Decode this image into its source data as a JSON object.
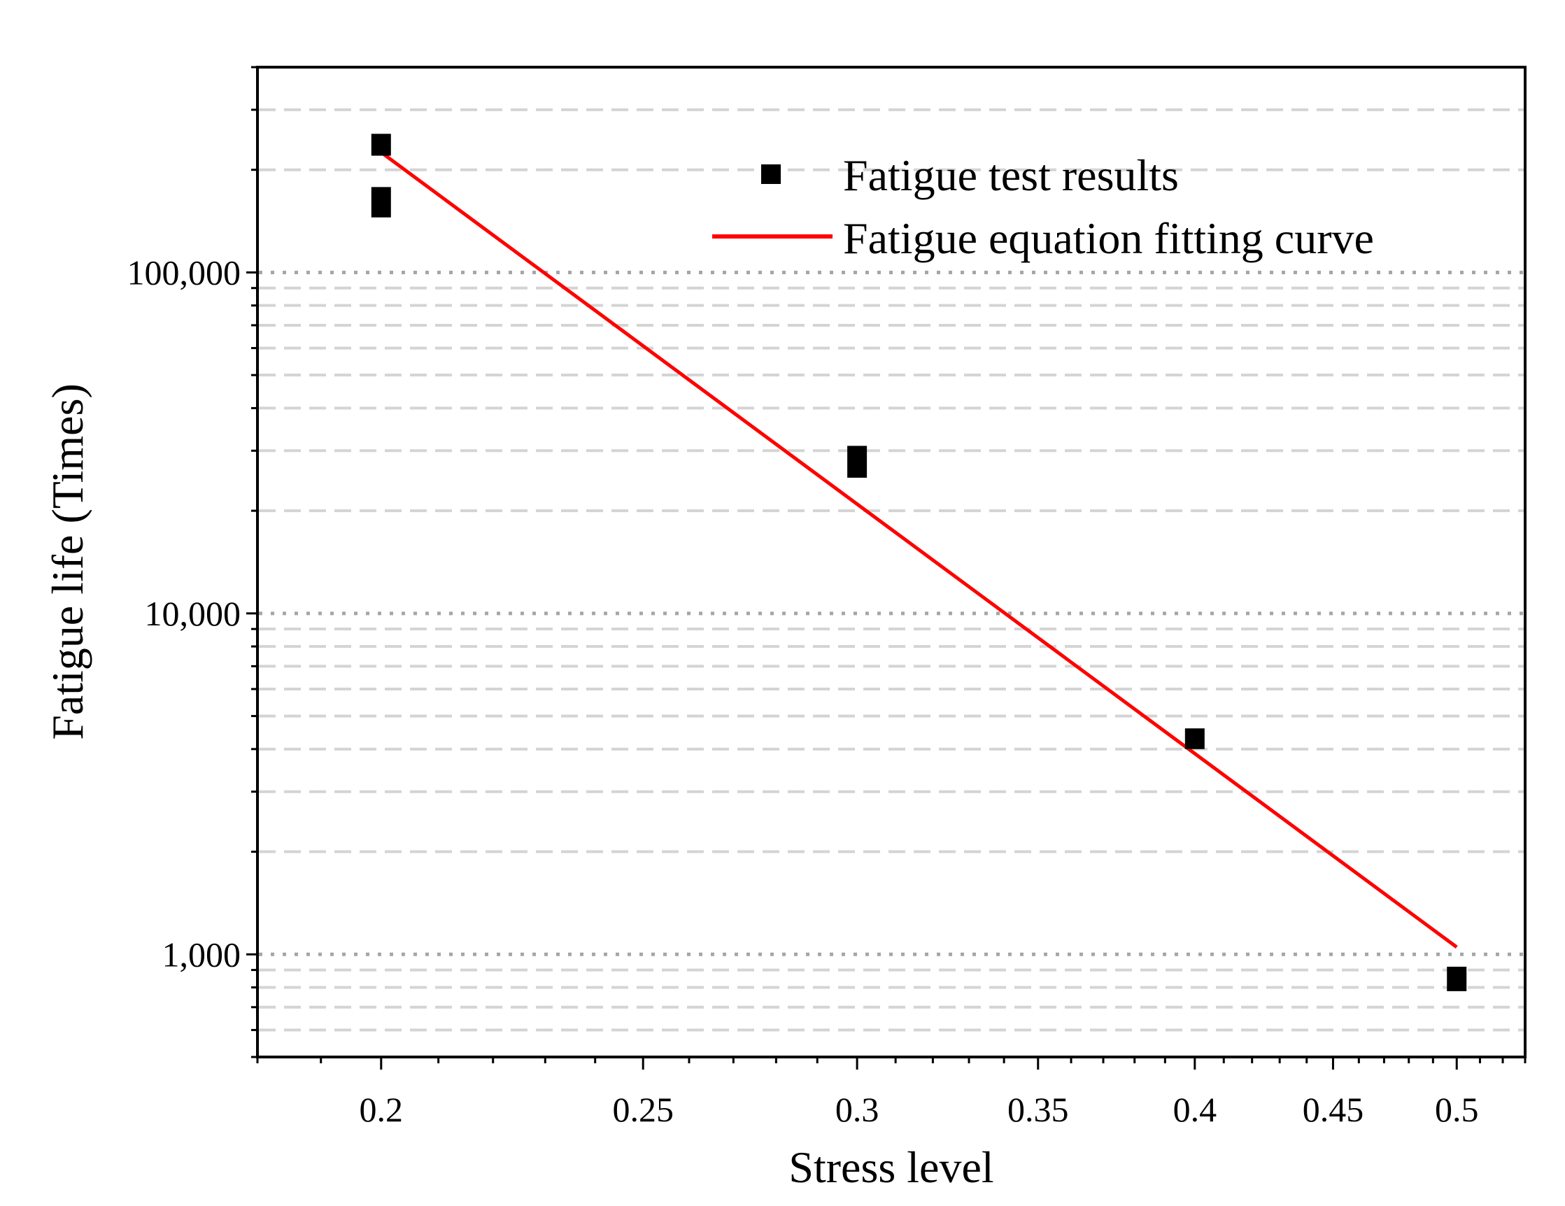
{
  "chart_data": {
    "type": "scatter",
    "title": "",
    "xlabel": "Stress level",
    "ylabel": "Fatigue life (Times)",
    "x_scale": "log",
    "y_scale": "log",
    "xlim": [
      0.18,
      0.53
    ],
    "ylim": [
      500,
      400000
    ],
    "x_major_ticks": [
      0.2,
      0.25,
      0.3,
      0.35,
      0.4,
      0.45,
      0.5
    ],
    "x_tick_labels": [
      "0.2",
      "0.25",
      "0.3",
      "0.35",
      "0.4",
      "0.45",
      "0.5"
    ],
    "y_major_ticks": [
      1000,
      10000,
      100000
    ],
    "y_tick_labels": [
      "1,000",
      "10,000",
      "100,000"
    ],
    "grid": true,
    "legend_position": "top-right",
    "series": [
      {
        "name": "Fatigue test results",
        "kind": "scatter",
        "color": "#000000",
        "points": [
          {
            "x": 0.2,
            "y_low": 220000,
            "y_high": 255000
          },
          {
            "x": 0.2,
            "y_low": 145000,
            "y_high": 178000
          },
          {
            "x": 0.3,
            "y_low": 25000,
            "y_high": 31000
          },
          {
            "x": 0.4,
            "y_low": 4000,
            "y_high": 4600
          },
          {
            "x": 0.5,
            "y_low": 780,
            "y_high": 920
          }
        ]
      },
      {
        "name": "Fatigue equation fitting curve",
        "kind": "line",
        "color": "#ff0000",
        "x": [
          0.2,
          0.5
        ],
        "y": [
          225000,
          1050
        ]
      }
    ]
  }
}
